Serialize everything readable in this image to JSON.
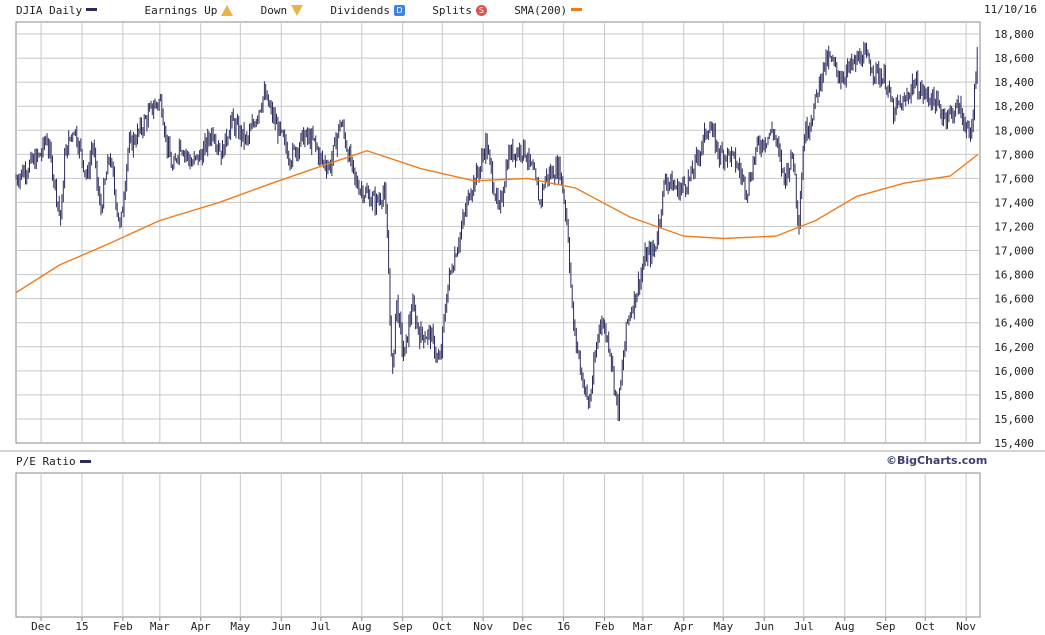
{
  "legend": {
    "series_label": "DJIA Daily",
    "earnings_label": "Earnings",
    "up_label": "Up",
    "down_label": "Down",
    "dividends_label": "Dividends",
    "dividend_icon": "D",
    "splits_label": "Splits",
    "split_icon": "S",
    "sma_label": "SMA(200)"
  },
  "date_label": "11/10/16",
  "pe_label": "P/E Ratio",
  "credit": "©BigCharts.com",
  "colors": {
    "price": "#2b2c5e",
    "sma": "#f07c1c",
    "grid": "#c8c8c8",
    "axis": "#8a8a8a"
  },
  "chart_data": [
    {
      "type": "line",
      "title": "DJIA Daily",
      "x_axis": [
        "Dec",
        "15",
        "Feb",
        "Mar",
        "Apr",
        "May",
        "Jun",
        "Jul",
        "Aug",
        "Sep",
        "Oct",
        "Nov",
        "Dec",
        "16",
        "Feb",
        "Mar",
        "Apr",
        "May",
        "Jun",
        "Jul",
        "Aug",
        "Sep",
        "Oct",
        "Nov"
      ],
      "y_ticks": [
        15400,
        15600,
        15800,
        16000,
        16200,
        16400,
        16600,
        16800,
        17000,
        17200,
        17400,
        17600,
        17800,
        18000,
        18200,
        18400,
        18600,
        18800
      ],
      "ylim": [
        15400,
        18900
      ],
      "grid": true,
      "series": [
        {
          "name": "DJIA Daily",
          "style": "ohlc-bars",
          "x": [
            "2014-11-12",
            "2014-11-21",
            "2014-12-01",
            "2014-12-05",
            "2014-12-10",
            "2014-12-16",
            "2014-12-19",
            "2014-12-26",
            "2015-01-05",
            "2015-01-09",
            "2015-01-15",
            "2015-01-22",
            "2015-01-30",
            "2015-02-05",
            "2015-02-13",
            "2015-02-24",
            "2015-03-02",
            "2015-03-06",
            "2015-03-11",
            "2015-03-16",
            "2015-03-25",
            "2015-04-02",
            "2015-04-10",
            "2015-04-17",
            "2015-04-24",
            "2015-05-06",
            "2015-05-19",
            "2015-05-28",
            "2015-06-08",
            "2015-06-18",
            "2015-06-26",
            "2015-07-01",
            "2015-07-08",
            "2015-07-16",
            "2015-07-27",
            "2015-08-06",
            "2015-08-12",
            "2015-08-18",
            "2015-08-21",
            "2015-08-24",
            "2015-08-27",
            "2015-09-02",
            "2015-09-08",
            "2015-09-14",
            "2015-09-22",
            "2015-09-29",
            "2015-10-05",
            "2015-10-09",
            "2015-10-16",
            "2015-10-22",
            "2015-10-30",
            "2015-11-03",
            "2015-11-13",
            "2015-11-20",
            "2015-12-02",
            "2015-12-10",
            "2015-12-14",
            "2015-12-18",
            "2015-12-29",
            "2016-01-04",
            "2016-01-08",
            "2016-01-15",
            "2016-01-20",
            "2016-01-29",
            "2016-02-05",
            "2016-02-11",
            "2016-02-18",
            "2016-02-25",
            "2016-03-03",
            "2016-03-10",
            "2016-03-18",
            "2016-03-28",
            "2016-04-06",
            "2016-04-20",
            "2016-04-28",
            "2016-05-06",
            "2016-05-12",
            "2016-05-19",
            "2016-05-26",
            "2016-06-08",
            "2016-06-16",
            "2016-06-23",
            "2016-06-27",
            "2016-07-01",
            "2016-07-08",
            "2016-07-15",
            "2016-07-20",
            "2016-07-29",
            "2016-08-08",
            "2016-08-15",
            "2016-08-23",
            "2016-09-01",
            "2016-09-08",
            "2016-09-09",
            "2016-09-15",
            "2016-09-22",
            "2016-09-30",
            "2016-10-07",
            "2016-10-14",
            "2016-10-21",
            "2016-10-26",
            "2016-11-01",
            "2016-11-04",
            "2016-11-07",
            "2016-11-09",
            "2016-11-10"
          ],
          "values": [
            17600,
            17700,
            17800,
            17950,
            17650,
            17250,
            17800,
            18030,
            17600,
            17900,
            17320,
            17800,
            17170,
            17850,
            17980,
            18200,
            18250,
            17900,
            17650,
            17900,
            17720,
            17800,
            18000,
            17800,
            18080,
            17900,
            18300,
            18050,
            17770,
            17950,
            17900,
            17750,
            17700,
            18080,
            17570,
            17450,
            17400,
            17500,
            16990,
            15870,
            16600,
            16100,
            16550,
            16300,
            16300,
            16050,
            16700,
            16900,
            17200,
            17500,
            17700,
            17900,
            17300,
            17800,
            17850,
            17600,
            17400,
            17600,
            17700,
            17200,
            16400,
            15950,
            15700,
            16450,
            16200,
            15650,
            16400,
            16650,
            16950,
            17000,
            17600,
            17500,
            17600,
            18050,
            17800,
            17800,
            17700,
            17500,
            17850,
            18000,
            17600,
            17800,
            17200,
            17950,
            18150,
            18500,
            18600,
            18440,
            18550,
            18630,
            18500,
            18420,
            18100,
            18200,
            18220,
            18400,
            18300,
            18260,
            18130,
            18140,
            18200,
            18040,
            17890,
            18260,
            18600,
            18810
          ]
        },
        {
          "name": "SMA(200)",
          "x": [
            "2014-11-12",
            "2014-12-15",
            "2015-01-20",
            "2015-03-01",
            "2015-04-15",
            "2015-05-25",
            "2015-07-01",
            "2015-08-05",
            "2015-09-15",
            "2015-10-25",
            "2015-12-05",
            "2016-01-10",
            "2016-02-20",
            "2016-04-01",
            "2016-05-01",
            "2016-06-10",
            "2016-07-10",
            "2016-08-10",
            "2016-09-15",
            "2016-10-20",
            "2016-11-10"
          ],
          "values": [
            16650,
            16880,
            17050,
            17250,
            17400,
            17560,
            17700,
            17830,
            17680,
            17580,
            17600,
            17520,
            17280,
            17120,
            17100,
            17120,
            17250,
            17450,
            17560,
            17620,
            17800
          ]
        }
      ]
    },
    {
      "type": "line",
      "title": "P/E Ratio",
      "series": [
        {
          "name": "P/E Ratio",
          "values": []
        }
      ],
      "grid": true
    }
  ]
}
